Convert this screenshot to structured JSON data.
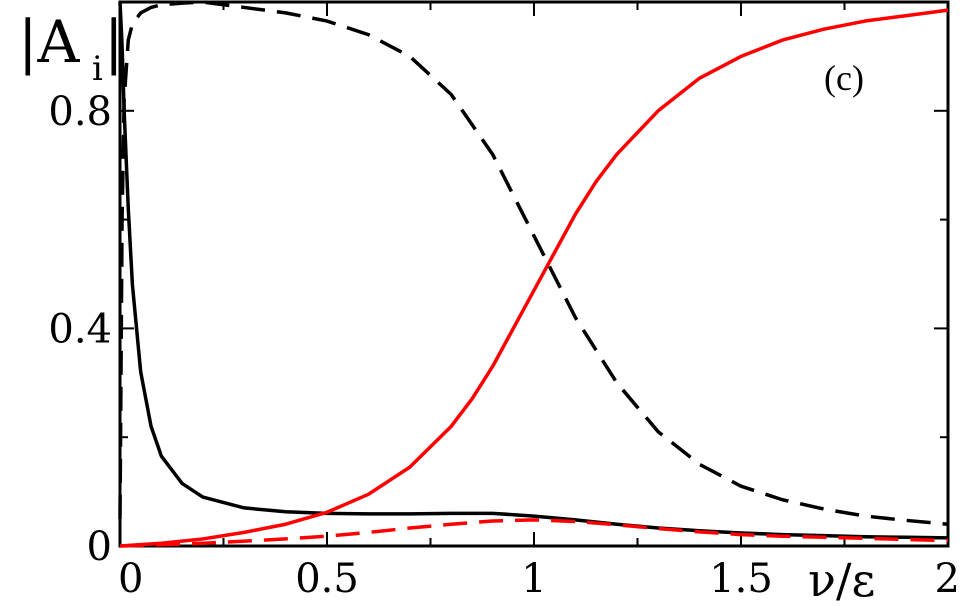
{
  "chart_data": {
    "type": "line",
    "panel_label": "(c)",
    "xlabel": "ν/ε",
    "ylabel": "|A",
    "ylabel_subscript": "i",
    "ylabel_close": "|",
    "xlim": [
      0,
      2
    ],
    "ylim": [
      0,
      1.0
    ],
    "x_ticks": [
      0,
      0.5,
      1,
      1.5,
      2
    ],
    "x_tick_labels": [
      "0",
      "0.5",
      "1",
      "1.5",
      "2"
    ],
    "y_ticks": [
      0,
      0.4,
      0.8
    ],
    "y_tick_labels": [
      "0",
      "0.4",
      "0.8"
    ],
    "grid": false,
    "series": [
      {
        "color": "#000000",
        "dash": "solid",
        "x": [
          0,
          0.005,
          0.01,
          0.02,
          0.03,
          0.05,
          0.075,
          0.1,
          0.15,
          0.2,
          0.3,
          0.4,
          0.5,
          0.6,
          0.7,
          0.8,
          0.9,
          1.0,
          1.1,
          1.2,
          1.3,
          1.4,
          1.5,
          1.6,
          1.7,
          1.8,
          1.9,
          2.0
        ],
        "y": [
          1.0,
          0.92,
          0.8,
          0.62,
          0.48,
          0.32,
          0.22,
          0.165,
          0.115,
          0.09,
          0.07,
          0.063,
          0.06,
          0.059,
          0.059,
          0.06,
          0.06,
          0.055,
          0.048,
          0.04,
          0.033,
          0.028,
          0.024,
          0.021,
          0.019,
          0.017,
          0.016,
          0.015
        ]
      },
      {
        "color": "#000000",
        "dash": "dashed",
        "x": [
          0,
          0.005,
          0.01,
          0.02,
          0.03,
          0.05,
          0.075,
          0.1,
          0.15,
          0.2,
          0.3,
          0.4,
          0.5,
          0.6,
          0.7,
          0.8,
          0.9,
          1.0,
          1.1,
          1.2,
          1.3,
          1.4,
          1.5,
          1.6,
          1.7,
          1.8,
          1.9,
          2.0
        ],
        "y": [
          0.05,
          0.6,
          0.82,
          0.93,
          0.96,
          0.98,
          0.99,
          0.995,
          0.998,
          1.0,
          0.99,
          0.98,
          0.965,
          0.94,
          0.9,
          0.83,
          0.72,
          0.57,
          0.42,
          0.3,
          0.21,
          0.15,
          0.11,
          0.085,
          0.068,
          0.055,
          0.047,
          0.04
        ]
      },
      {
        "color": "#ff0000",
        "dash": "solid",
        "x": [
          0,
          0.1,
          0.2,
          0.3,
          0.4,
          0.5,
          0.6,
          0.7,
          0.8,
          0.85,
          0.9,
          0.95,
          1.0,
          1.05,
          1.1,
          1.15,
          1.2,
          1.3,
          1.4,
          1.5,
          1.6,
          1.7,
          1.8,
          1.9,
          2.0
        ],
        "y": [
          0,
          0.005,
          0.013,
          0.025,
          0.04,
          0.062,
          0.095,
          0.145,
          0.22,
          0.27,
          0.33,
          0.4,
          0.47,
          0.54,
          0.61,
          0.67,
          0.72,
          0.8,
          0.86,
          0.9,
          0.93,
          0.95,
          0.965,
          0.975,
          0.985
        ]
      },
      {
        "color": "#ff0000",
        "dash": "dashed",
        "x": [
          0,
          0.2,
          0.4,
          0.5,
          0.6,
          0.7,
          0.8,
          0.9,
          1.0,
          1.1,
          1.2,
          1.3,
          1.4,
          1.5,
          1.6,
          1.7,
          1.8,
          1.9,
          2.0
        ],
        "y": [
          0,
          0.005,
          0.013,
          0.018,
          0.025,
          0.033,
          0.04,
          0.046,
          0.048,
          0.045,
          0.039,
          0.032,
          0.026,
          0.021,
          0.018,
          0.016,
          0.014,
          0.012,
          0.01
        ]
      }
    ]
  }
}
